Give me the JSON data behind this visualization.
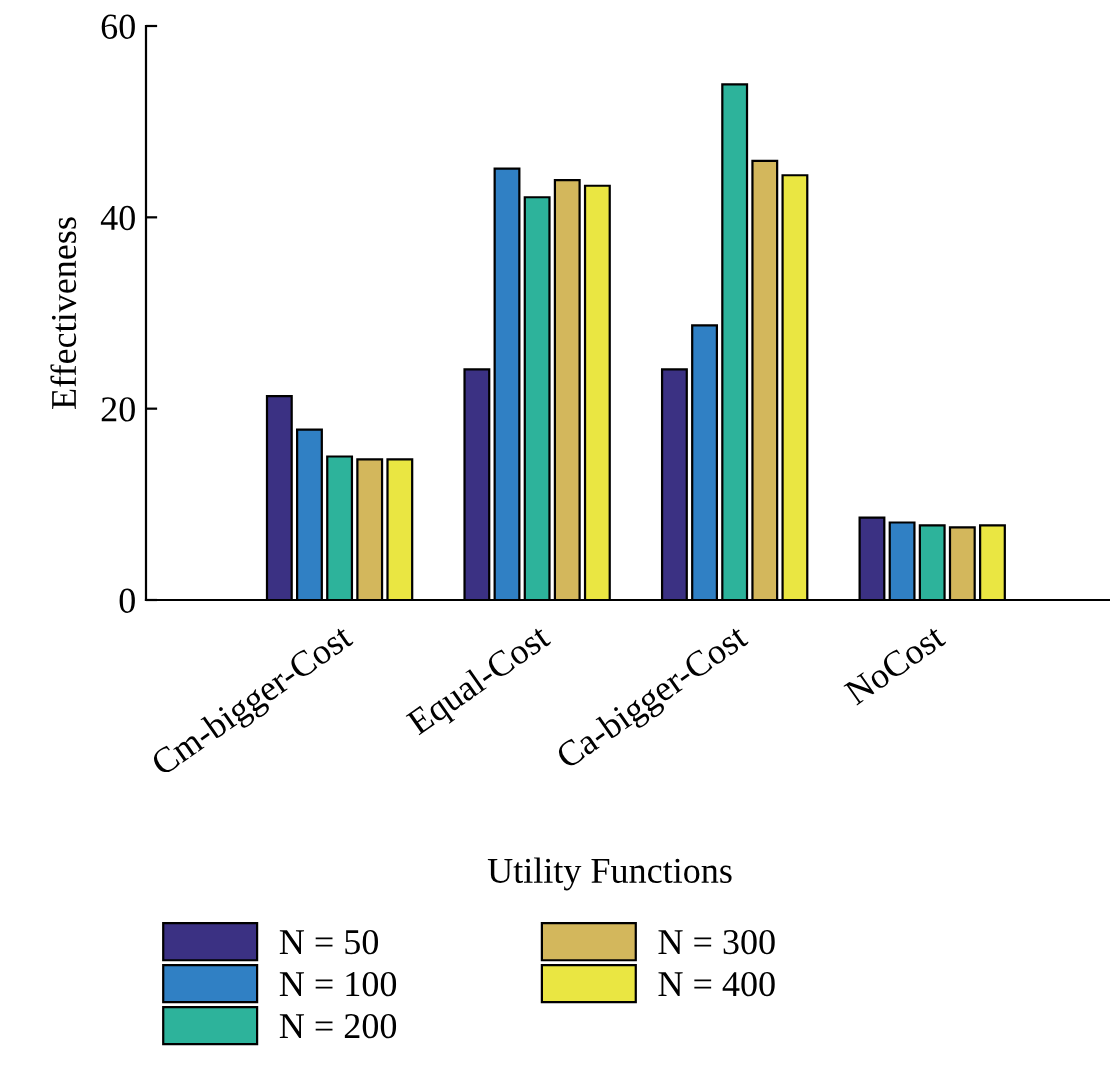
{
  "chart_data": {
    "type": "bar",
    "xlabel": "Utility Functions",
    "ylabel": "Effectiveness",
    "categories": [
      "Cm-bigger-Cost",
      "Equal-Cost",
      "Ca-bigger-Cost",
      "NoCost"
    ],
    "series": [
      {
        "name": "N = 50",
        "color": "#3b3183",
        "values": [
          21.3,
          24.1,
          24.1,
          8.6
        ]
      },
      {
        "name": "N = 100",
        "color": "#3080c4",
        "values": [
          17.8,
          45.1,
          28.7,
          8.1
        ]
      },
      {
        "name": "N = 200",
        "color": "#2db39b",
        "values": [
          15.0,
          42.1,
          53.9,
          7.8
        ]
      },
      {
        "name": "N = 300",
        "color": "#d3b75c",
        "values": [
          14.7,
          43.9,
          45.9,
          7.6
        ]
      },
      {
        "name": "N = 400",
        "color": "#eae642",
        "values": [
          14.7,
          43.3,
          44.4,
          7.8
        ]
      }
    ],
    "ylim": [
      0,
      60
    ],
    "yticks": [
      0,
      20,
      40,
      60
    ],
    "grid": false,
    "legend": "bottom"
  }
}
